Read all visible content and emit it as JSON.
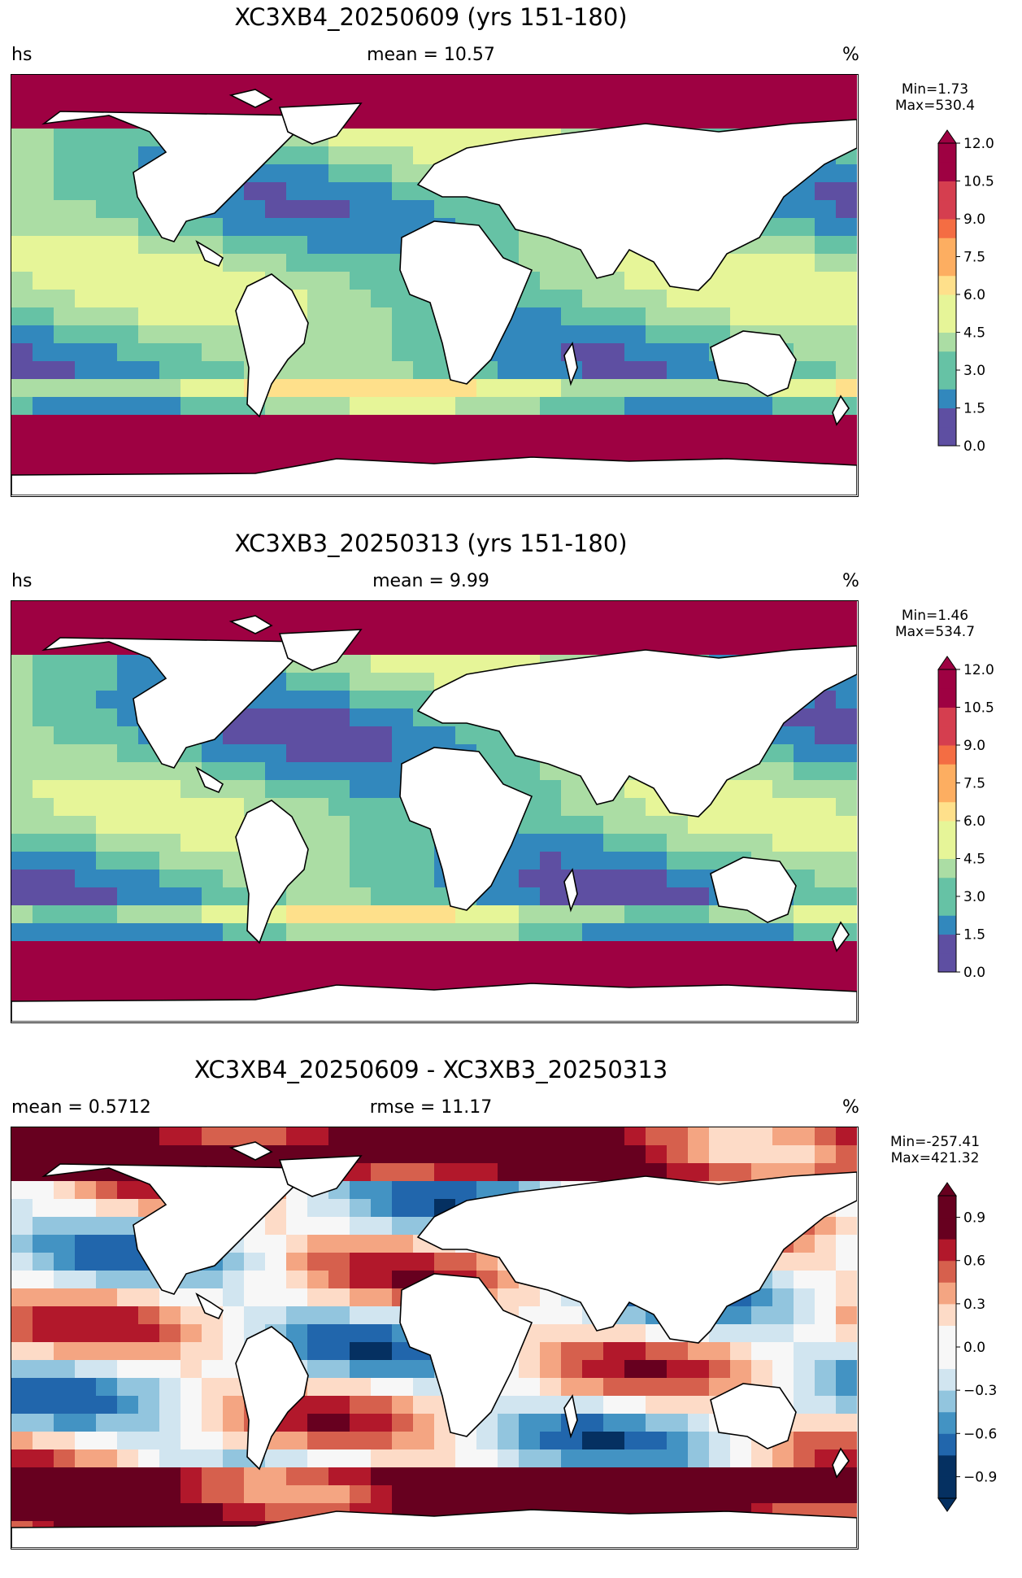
{
  "panels": [
    {
      "title": "XC3XB4_20250609 (yrs 151-180)",
      "left_label": "hs",
      "center_label": "mean = 10.57",
      "right_label": "%",
      "min_label": "Min=1.73",
      "max_label": "Max=530.4",
      "colormap": "RdYlBu_r (sequential)",
      "colorbar_extend": "max",
      "colorbar_ticks": [
        "0.0",
        "1.5",
        "3.0",
        "4.5",
        "6.0",
        "7.5",
        "9.0",
        "10.5",
        "12.0"
      ],
      "colorbar_range": [
        0,
        12
      ]
    },
    {
      "title": "XC3XB3_20250313 (yrs 151-180)",
      "left_label": "hs",
      "center_label": "mean = 9.99",
      "right_label": "%",
      "min_label": "Min=1.46",
      "max_label": "Max=534.7",
      "colormap": "RdYlBu_r (sequential)",
      "colorbar_extend": "max",
      "colorbar_ticks": [
        "0.0",
        "1.5",
        "3.0",
        "4.5",
        "6.0",
        "7.5",
        "9.0",
        "10.5",
        "12.0"
      ],
      "colorbar_range": [
        0,
        12
      ]
    },
    {
      "title": "XC3XB4_20250609 - XC3XB3_20250313",
      "left_label": "mean = 0.5712",
      "center_label": "rmse = 11.17",
      "right_label": "%",
      "min_label": "Min=-257.41",
      "max_label": "Max=421.32",
      "colormap": "RdBu_r (diverging)",
      "colorbar_extend": "both",
      "colorbar_ticks": [
        "−0.9",
        "−0.6",
        "−0.3",
        "0.0",
        "0.3",
        "0.6",
        "0.9"
      ],
      "colorbar_range": [
        -1.05,
        1.05
      ]
    }
  ]
}
